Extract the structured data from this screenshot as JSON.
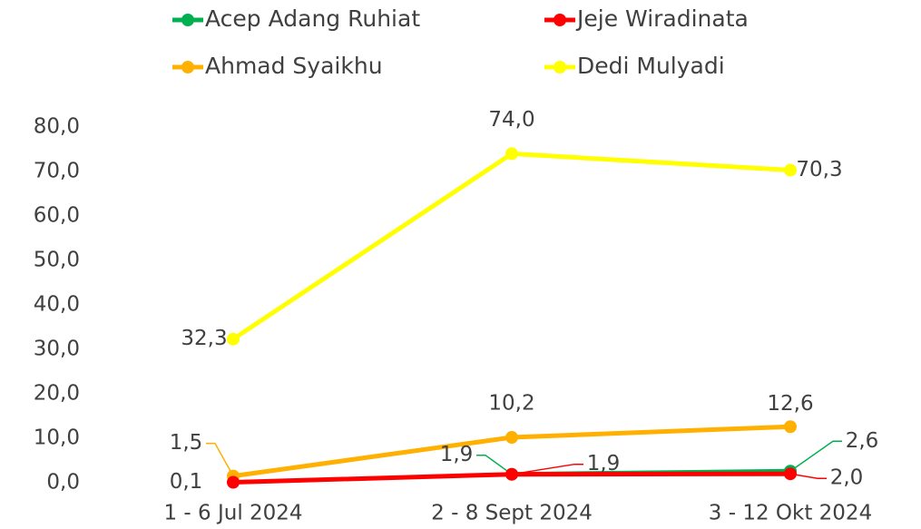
{
  "chart_data": {
    "type": "line",
    "categories": [
      "1 - 6 Jul 2024",
      "2 - 8  Sept 2024",
      "3 - 12 Okt 2024"
    ],
    "series": [
      {
        "name": "Acep Adang Ruhiat",
        "color": "#00b050",
        "values": [
          null,
          1.9,
          2.6
        ],
        "value_labels": [
          null,
          "1,9",
          "2,6"
        ]
      },
      {
        "name": "Jeje Wiradinata",
        "color": "#ff0000",
        "values": [
          0.1,
          1.9,
          2.0
        ],
        "value_labels": [
          "0,1",
          "1,9",
          "2,0"
        ]
      },
      {
        "name": "Ahmad Syaikhu",
        "color": "#ffb000",
        "values": [
          1.5,
          10.2,
          12.6
        ],
        "value_labels": [
          "1,5",
          "10,2",
          "12,6"
        ]
      },
      {
        "name": "Dedi Mulyadi",
        "color": "#ffff00",
        "values": [
          32.3,
          74.0,
          70.3
        ],
        "value_labels": [
          "32,3",
          "74,0",
          "70,3"
        ]
      }
    ],
    "ylim": [
      0,
      80
    ],
    "yticks": [
      {
        "value": 0,
        "label": "0,0"
      },
      {
        "value": 10,
        "label": "10,0"
      },
      {
        "value": 20,
        "label": "20,0"
      },
      {
        "value": 30,
        "label": "30,0"
      },
      {
        "value": 40,
        "label": "40,0"
      },
      {
        "value": 50,
        "label": "50,0"
      },
      {
        "value": 60,
        "label": "60,0"
      },
      {
        "value": 70,
        "label": "70,0"
      },
      {
        "value": 80,
        "label": "80,0"
      }
    ],
    "grid": false
  }
}
